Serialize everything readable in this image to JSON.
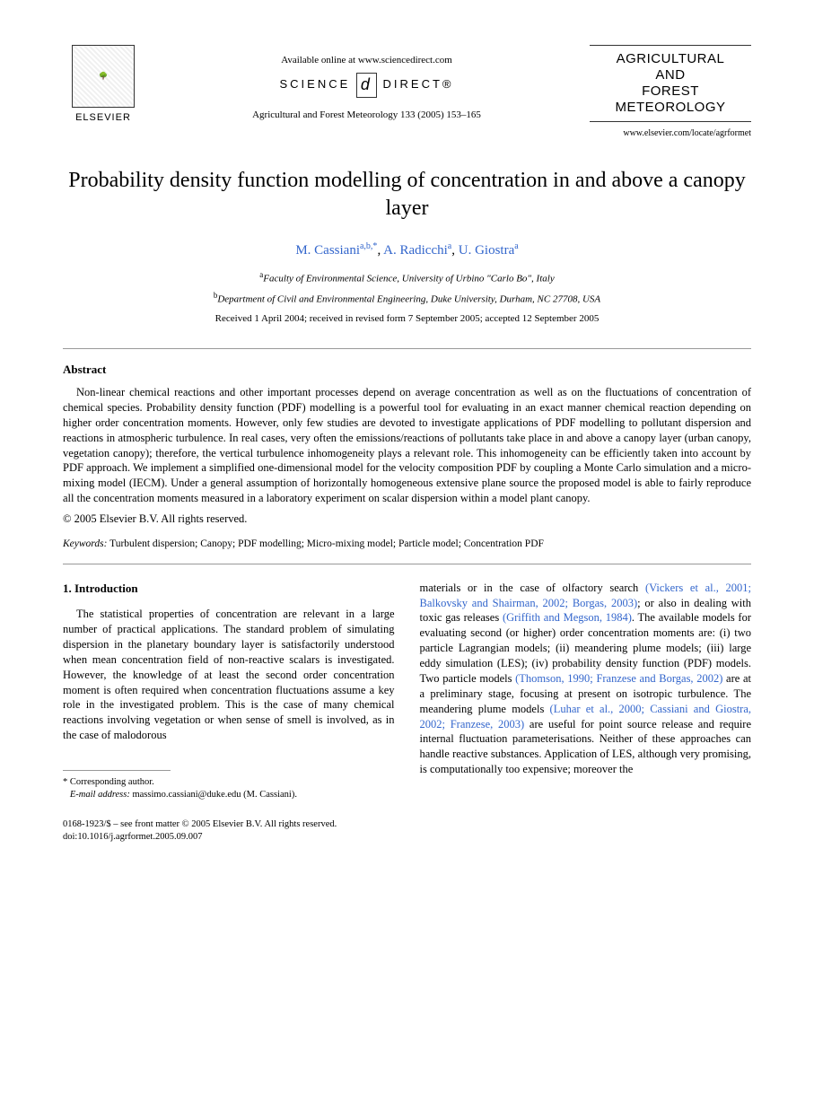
{
  "header": {
    "elsevier_label": "ELSEVIER",
    "available_text": "Available online at www.sciencedirect.com",
    "science_direct": "SCIENCE",
    "science_direct2": "DIRECT®",
    "citation": "Agricultural and Forest Meteorology 133 (2005) 153–165",
    "journal_title_l1": "AGRICULTURAL",
    "journal_title_l2": "AND",
    "journal_title_l3": "FOREST",
    "journal_title_l4": "METEOROLOGY",
    "journal_url": "www.elsevier.com/locate/agrformet"
  },
  "article": {
    "title": "Probability density function modelling of concentration in and above a canopy layer",
    "authors_html": "M. Cassiani",
    "author1": "M. Cassiani",
    "author1_sup": "a,b,*",
    "author2": "A. Radicchi",
    "author2_sup": "a",
    "author3": "U. Giostra",
    "author3_sup": "a",
    "aff_a_sup": "a",
    "aff_a": "Faculty of Environmental Science, University of Urbino \"Carlo Bo\", Italy",
    "aff_b_sup": "b",
    "aff_b": "Department of Civil and Environmental Engineering, Duke University, Durham, NC 27708, USA",
    "dates": "Received 1 April 2004; received in revised form 7 September 2005; accepted 12 September 2005"
  },
  "abstract": {
    "heading": "Abstract",
    "text": "Non-linear chemical reactions and other important processes depend on average concentration as well as on the fluctuations of concentration of chemical species. Probability density function (PDF) modelling is a powerful tool for evaluating in an exact manner chemical reaction depending on higher order concentration moments. However, only few studies are devoted to investigate applications of PDF modelling to pollutant dispersion and reactions in atmospheric turbulence. In real cases, very often the emissions/reactions of pollutants take place in and above a canopy layer (urban canopy, vegetation canopy); therefore, the vertical turbulence inhomogeneity plays a relevant role. This inhomogeneity can be efficiently taken into account by PDF approach. We implement a simplified one-dimensional model for the velocity composition PDF by coupling a Monte Carlo simulation and a micro-mixing model (IECM). Under a general assumption of horizontally homogeneous extensive plane source the proposed model is able to fairly reproduce all the concentration moments measured in a laboratory experiment on scalar dispersion within a model plant canopy.",
    "copyright": "© 2005 Elsevier B.V. All rights reserved.",
    "keywords_label": "Keywords:",
    "keywords": " Turbulent dispersion; Canopy; PDF modelling; Micro-mixing model; Particle model; Concentration PDF"
  },
  "body": {
    "section_heading": "1. Introduction",
    "col1_p1": "The statistical properties of concentration are relevant in a large number of practical applications. The standard problem of simulating dispersion in the planetary boundary layer is satisfactorily understood when mean concentration field of non-reactive scalars is investigated. However, the knowledge of at least the second order concentration moment is often required when concentration fluctuations assume a key role in the investigated problem. This is the case of many chemical reactions involving vegetation or when sense of smell is involved, as in the case of malodorous",
    "col2_p1_a": "materials or in the case of olfactory search ",
    "col2_ref1": "(Vickers et al., 2001; Balkovsky and Shairman, 2002; Borgas, 2003)",
    "col2_p1_b": "; or also in dealing with toxic gas releases ",
    "col2_ref2": "(Griffith and Megson, 1984)",
    "col2_p1_c": ". The available models for evaluating second (or higher) order concentration moments are: (i) two particle Lagrangian models; (ii) meandering plume models; (iii) large eddy simulation (LES); (iv) probability density function (PDF) models. Two particle models ",
    "col2_ref3": "(Thomson, 1990; Franzese and Borgas, 2002)",
    "col2_p1_d": " are at a preliminary stage, focusing at present on isotropic turbulence. The meandering plume models ",
    "col2_ref4": "(Luhar et al., 2000; Cassiani and Giostra, 2002; Franzese, 2003)",
    "col2_p1_e": " are useful for point source release and require internal fluctuation parameterisations. Neither of these approaches can handle reactive substances. Application of LES, although very promising, is computationally too expensive; moreover the"
  },
  "footnote": {
    "corr_label": "* Corresponding author.",
    "email_label": "E-mail address:",
    "email": " massimo.cassiani@duke.edu (M. Cassiani)."
  },
  "footer": {
    "line1": "0168-1923/$ – see front matter © 2005 Elsevier B.V. All rights reserved.",
    "line2": "doi:10.1016/j.agrformet.2005.09.007"
  },
  "colors": {
    "link": "#3366cc",
    "text": "#000000",
    "rule": "#999999"
  }
}
